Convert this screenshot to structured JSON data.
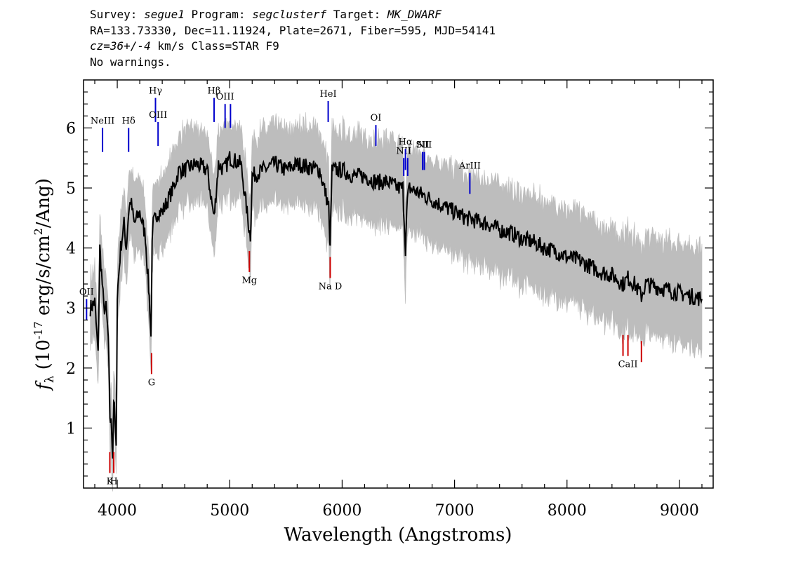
{
  "header": {
    "line1": {
      "survey_label": "Survey: ",
      "survey": "segue1",
      "program_label": " Program: ",
      "program": "segclusterf",
      "target_label": " Target: ",
      "target": "MK_DWARF"
    },
    "line2": "RA=133.73330, Dec=11.11924, Plate=2671, Fiber=595, MJD=54141",
    "line3": {
      "cz": "cz=36+/-4",
      "rest": " km/s Class=STAR F9"
    },
    "line4": "No warnings."
  },
  "colors": {
    "flux": "#000000",
    "error_band": "#bdbdbd",
    "emission_line": "#0000cc",
    "absorption_line": "#cc0000"
  },
  "chart_data": {
    "type": "line",
    "xlabel": "Wavelength (Angstroms)",
    "ylabel_parts": [
      "f",
      "λ",
      " (10",
      "-17",
      " erg/s/cm",
      "2",
      "/Ang)"
    ],
    "xlim": [
      3700,
      9300
    ],
    "ylim": [
      0,
      6.8
    ],
    "xticks": [
      4000,
      5000,
      6000,
      7000,
      8000,
      9000
    ],
    "yticks": [
      1,
      2,
      3,
      4,
      5,
      6
    ],
    "grid": false,
    "series": [
      {
        "x": [
          3760,
          3800,
          3830,
          3845,
          3860,
          3880,
          3900,
          3920,
          3935,
          3950,
          3960,
          3968,
          3980,
          3990,
          4000,
          4030,
          4060,
          4080,
          4101,
          4120,
          4150,
          4200,
          4250,
          4290,
          4300,
          4310,
          4320,
          4340,
          4360,
          4400,
          4450,
          4500,
          4550,
          4600,
          4700,
          4800,
          4861,
          4900,
          4950,
          5000,
          5100,
          5167,
          5184,
          5200,
          5300,
          5400,
          5500,
          5600,
          5700,
          5800,
          5880,
          5890,
          5896,
          5910,
          5950,
          6000,
          6100,
          6200,
          6300,
          6400,
          6500,
          6540,
          6563,
          6580,
          6600,
          6700,
          6800,
          6900,
          7000,
          7100,
          7200,
          7300,
          7400,
          7500,
          7600,
          7700,
          7800,
          7900,
          8000,
          8100,
          8200,
          8300,
          8400,
          8498,
          8542,
          8600,
          8662,
          8700,
          8800,
          8900,
          9000,
          9100,
          9200
        ],
        "y": [
          3.0,
          3.1,
          2.2,
          4.0,
          3.6,
          3.0,
          3.0,
          2.5,
          1.2,
          1.0,
          0.55,
          1.5,
          1.1,
          0.6,
          3.2,
          4.0,
          4.4,
          4.0,
          4.6,
          4.8,
          4.4,
          4.6,
          4.2,
          3.0,
          2.5,
          4.0,
          4.4,
          4.5,
          4.6,
          4.6,
          4.8,
          5.0,
          5.3,
          5.3,
          5.4,
          5.3,
          4.5,
          5.4,
          5.3,
          5.5,
          5.4,
          4.4,
          4.2,
          5.2,
          5.3,
          5.4,
          5.3,
          5.4,
          5.35,
          5.3,
          4.7,
          4.0,
          4.3,
          5.3,
          5.3,
          5.3,
          5.2,
          5.2,
          5.1,
          5.1,
          5.0,
          5.0,
          4.0,
          4.8,
          5.0,
          4.9,
          4.8,
          4.7,
          4.6,
          4.5,
          4.45,
          4.4,
          4.3,
          4.25,
          4.15,
          4.1,
          4.0,
          3.95,
          3.85,
          3.8,
          3.7,
          3.6,
          3.55,
          3.4,
          3.5,
          3.4,
          3.2,
          3.4,
          3.35,
          3.3,
          3.25,
          3.2,
          3.15
        ]
      }
    ],
    "emission_lines": [
      {
        "label": "NeIII",
        "x": 3869,
        "y0": 5.6,
        "y1": 6.0
      },
      {
        "label": "Hδ",
        "x": 4101,
        "y0": 5.6,
        "y1": 6.0
      },
      {
        "label": "Hγ",
        "x": 4340,
        "y0": 6.1,
        "y1": 6.5
      },
      {
        "label": "OIII",
        "x": 4363,
        "y0": 5.7,
        "y1": 6.1
      },
      {
        "label": "Hβ",
        "x": 4861,
        "y0": 6.1,
        "y1": 6.5
      },
      {
        "label": "OIII",
        "x": 4959,
        "y0": 6.0,
        "y1": 6.4
      },
      {
        "label": "",
        "x": 5007,
        "y0": 6.0,
        "y1": 6.4
      },
      {
        "label": "HeI",
        "x": 5876,
        "y0": 6.1,
        "y1": 6.45
      },
      {
        "label": "OI",
        "x": 6300,
        "y0": 5.7,
        "y1": 6.05
      },
      {
        "label": "NII",
        "x": 6548,
        "y0": 5.2,
        "y1": 5.5
      },
      {
        "label": "Hα",
        "x": 6563,
        "y0": 5.3,
        "y1": 5.65
      },
      {
        "label": "",
        "x": 6583,
        "y0": 5.2,
        "y1": 5.5
      },
      {
        "label": "SII",
        "x": 6716,
        "y0": 5.3,
        "y1": 5.6
      },
      {
        "label": "NII",
        "x": 6731,
        "y0": 5.3,
        "y1": 5.6
      },
      {
        "label": "ArIII",
        "x": 7136,
        "y0": 4.9,
        "y1": 5.25
      },
      {
        "label": "OII",
        "x": 3727,
        "y0": 2.8,
        "y1": 3.15
      }
    ],
    "absorption_lines": [
      {
        "label": "K",
        "x": 3934,
        "y0": 0.25,
        "y1": 0.6
      },
      {
        "label": "H",
        "x": 3969,
        "y0": 0.25,
        "y1": 0.6
      },
      {
        "label": "G",
        "x": 4305,
        "y0": 1.9,
        "y1": 2.25
      },
      {
        "label": "Mg",
        "x": 5175,
        "y0": 3.6,
        "y1": 3.95
      },
      {
        "label": "Na  D",
        "x": 5894,
        "y0": 3.5,
        "y1": 3.85
      },
      {
        "label": "",
        "x": 8498,
        "y0": 2.2,
        "y1": 2.55
      },
      {
        "label": "CaII",
        "x": 8542,
        "y0": 2.2,
        "y1": 2.55
      },
      {
        "label": "",
        "x": 8662,
        "y0": 2.1,
        "y1": 2.45
      }
    ]
  }
}
